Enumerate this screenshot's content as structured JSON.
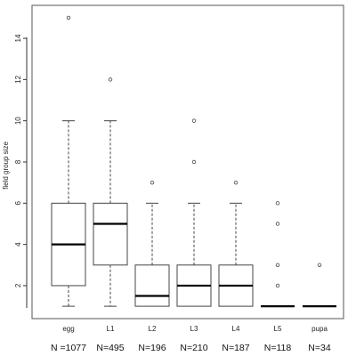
{
  "chart_data": {
    "type": "box",
    "title": "",
    "xlabel": "",
    "ylabel": "field group size",
    "ylim": [
      0.4,
      15.6
    ],
    "yticks": [
      2,
      4,
      6,
      8,
      10,
      12,
      14
    ],
    "grid": false,
    "legend": "none",
    "colors": {
      "box_stroke": "#444444",
      "median": "#000000",
      "frame": "#555555",
      "text": "#222222"
    },
    "boxes": [
      {
        "category": "egg",
        "n_label": "N =1077",
        "whisker_low": 1,
        "q1": 2,
        "median": 4,
        "q3": 6,
        "whisker_high": 10,
        "outliers": [
          15
        ]
      },
      {
        "category": "L1",
        "n_label": "N=495",
        "whisker_low": 1,
        "q1": 3,
        "median": 5,
        "q3": 6,
        "whisker_high": 10,
        "outliers": [
          12
        ]
      },
      {
        "category": "L2",
        "n_label": "N=196",
        "whisker_low": 1,
        "q1": 1,
        "median": 1.5,
        "q3": 3,
        "whisker_high": 6,
        "outliers": [
          7
        ]
      },
      {
        "category": "L3",
        "n_label": "N=210",
        "whisker_low": 1,
        "q1": 1,
        "median": 2,
        "q3": 3,
        "whisker_high": 6,
        "outliers": [
          8,
          10
        ]
      },
      {
        "category": "L4",
        "n_label": "N=187",
        "whisker_low": 1,
        "q1": 1,
        "median": 2,
        "q3": 3,
        "whisker_high": 6,
        "outliers": [
          7
        ]
      },
      {
        "category": "L5",
        "n_label": "N=118",
        "whisker_low": 1,
        "q1": 1,
        "median": 1,
        "q3": 1,
        "whisker_high": 1,
        "outliers": [
          2,
          3,
          5,
          6
        ]
      },
      {
        "category": "pupa",
        "n_label": "N=34",
        "whisker_low": 1,
        "q1": 1,
        "median": 1,
        "q3": 1,
        "whisker_high": 1,
        "outliers": [
          3
        ]
      }
    ]
  }
}
